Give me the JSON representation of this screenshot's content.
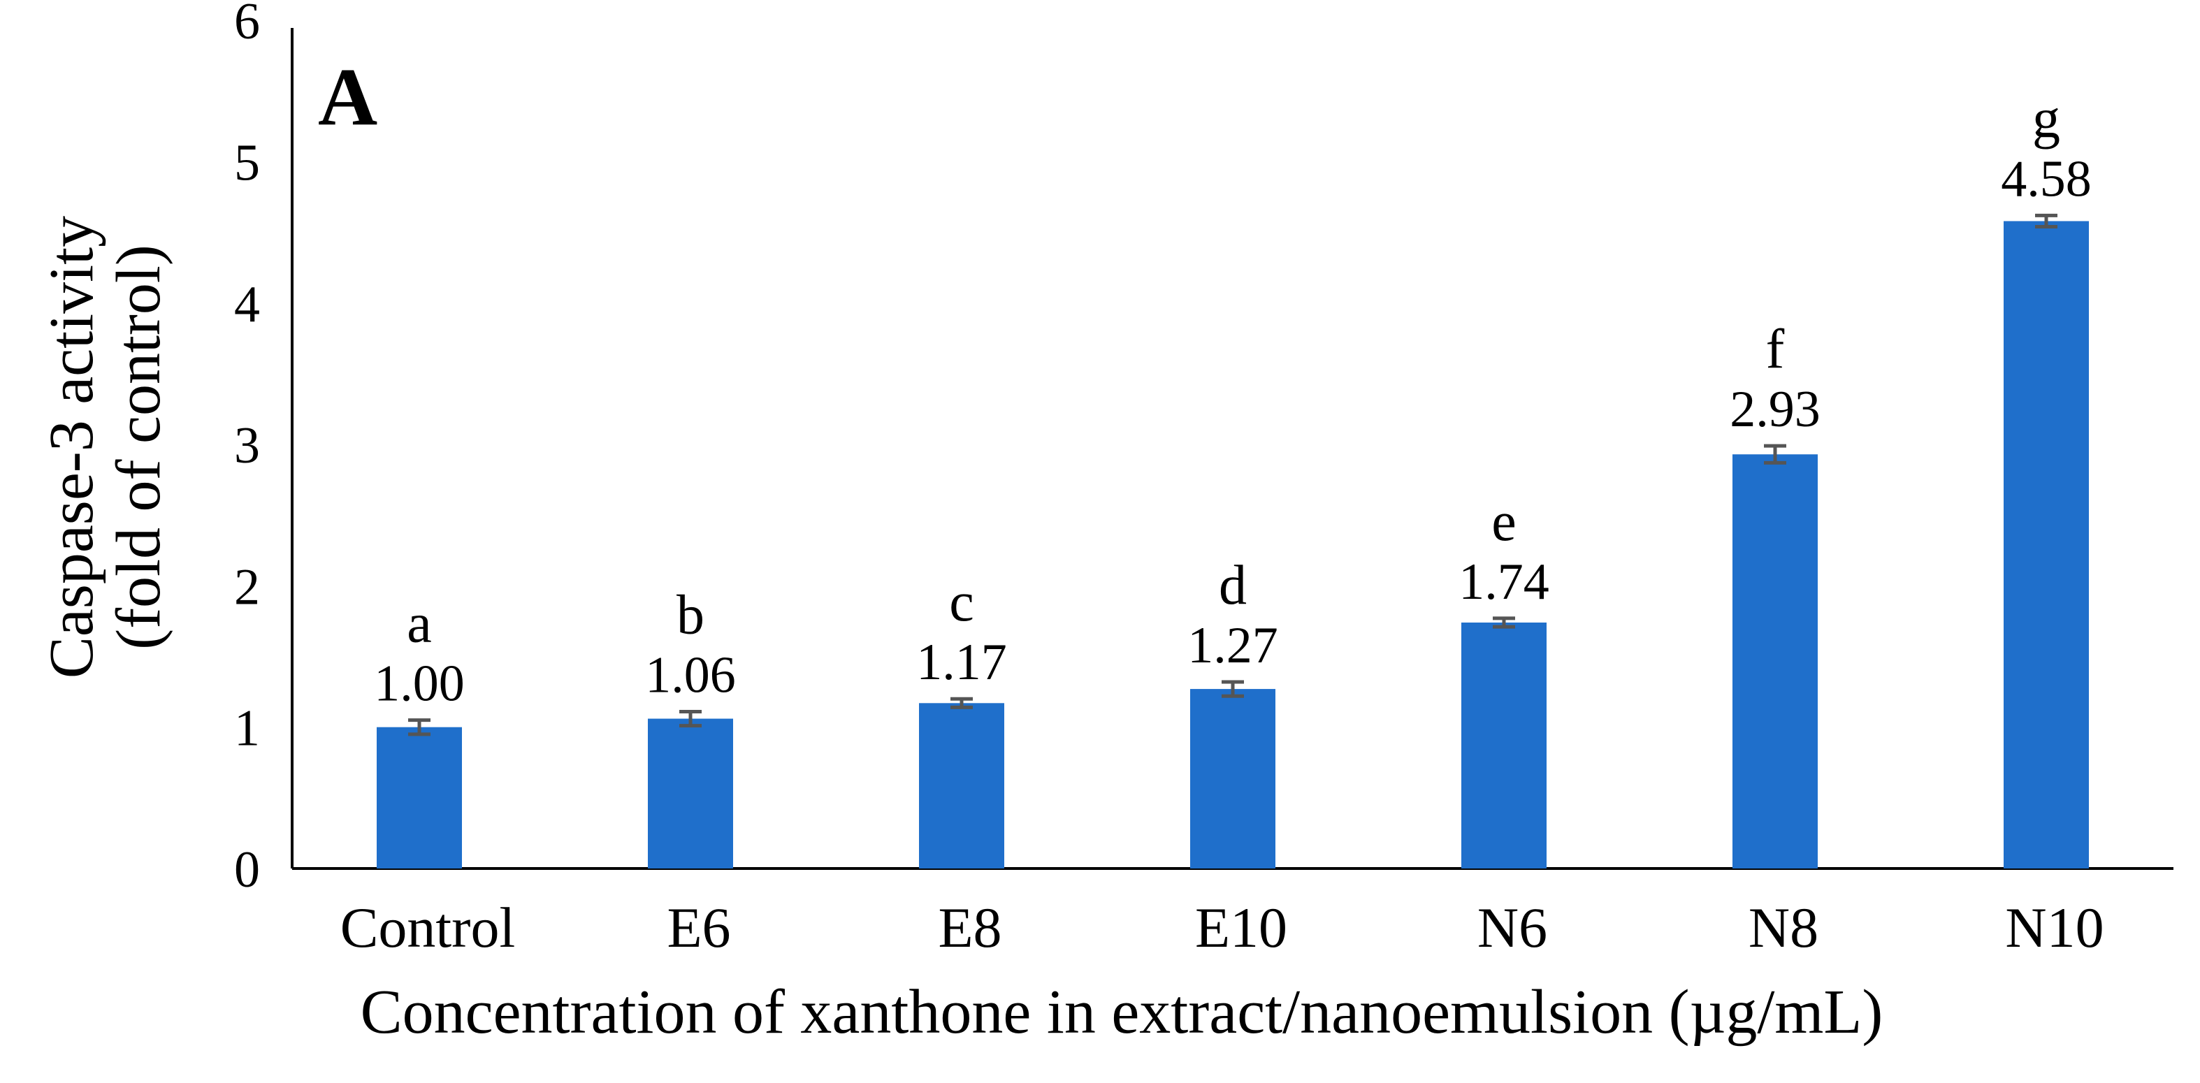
{
  "chart_data": {
    "type": "bar",
    "panel_label": "A",
    "categories": [
      "Control",
      "E6",
      "E8",
      "E10",
      "N6",
      "N8",
      "N10"
    ],
    "values": [
      1.0,
      1.06,
      1.17,
      1.27,
      1.74,
      2.93,
      4.58
    ],
    "value_labels": [
      "1.00",
      "1.06",
      "1.17",
      "1.27",
      "1.74",
      "2.93",
      "4.58"
    ],
    "errors": [
      0.05,
      0.05,
      0.03,
      0.05,
      0.03,
      0.06,
      0.04
    ],
    "significance_letters": [
      "a",
      "b",
      "c",
      "d",
      "e",
      "f",
      "g"
    ],
    "xlabel": "Concentration of xanthone in extract/nanoemulsion (µg/mL)",
    "ylabel_lines": [
      "Caspase-3 activity",
      "(fold of control)"
    ],
    "ylim": [
      0,
      6
    ],
    "yticks": [
      "0",
      "1",
      "2",
      "3",
      "4",
      "5",
      "6"
    ],
    "grid": false,
    "bar_color": "#1F6FCB",
    "error_bar_color": "#555555"
  }
}
